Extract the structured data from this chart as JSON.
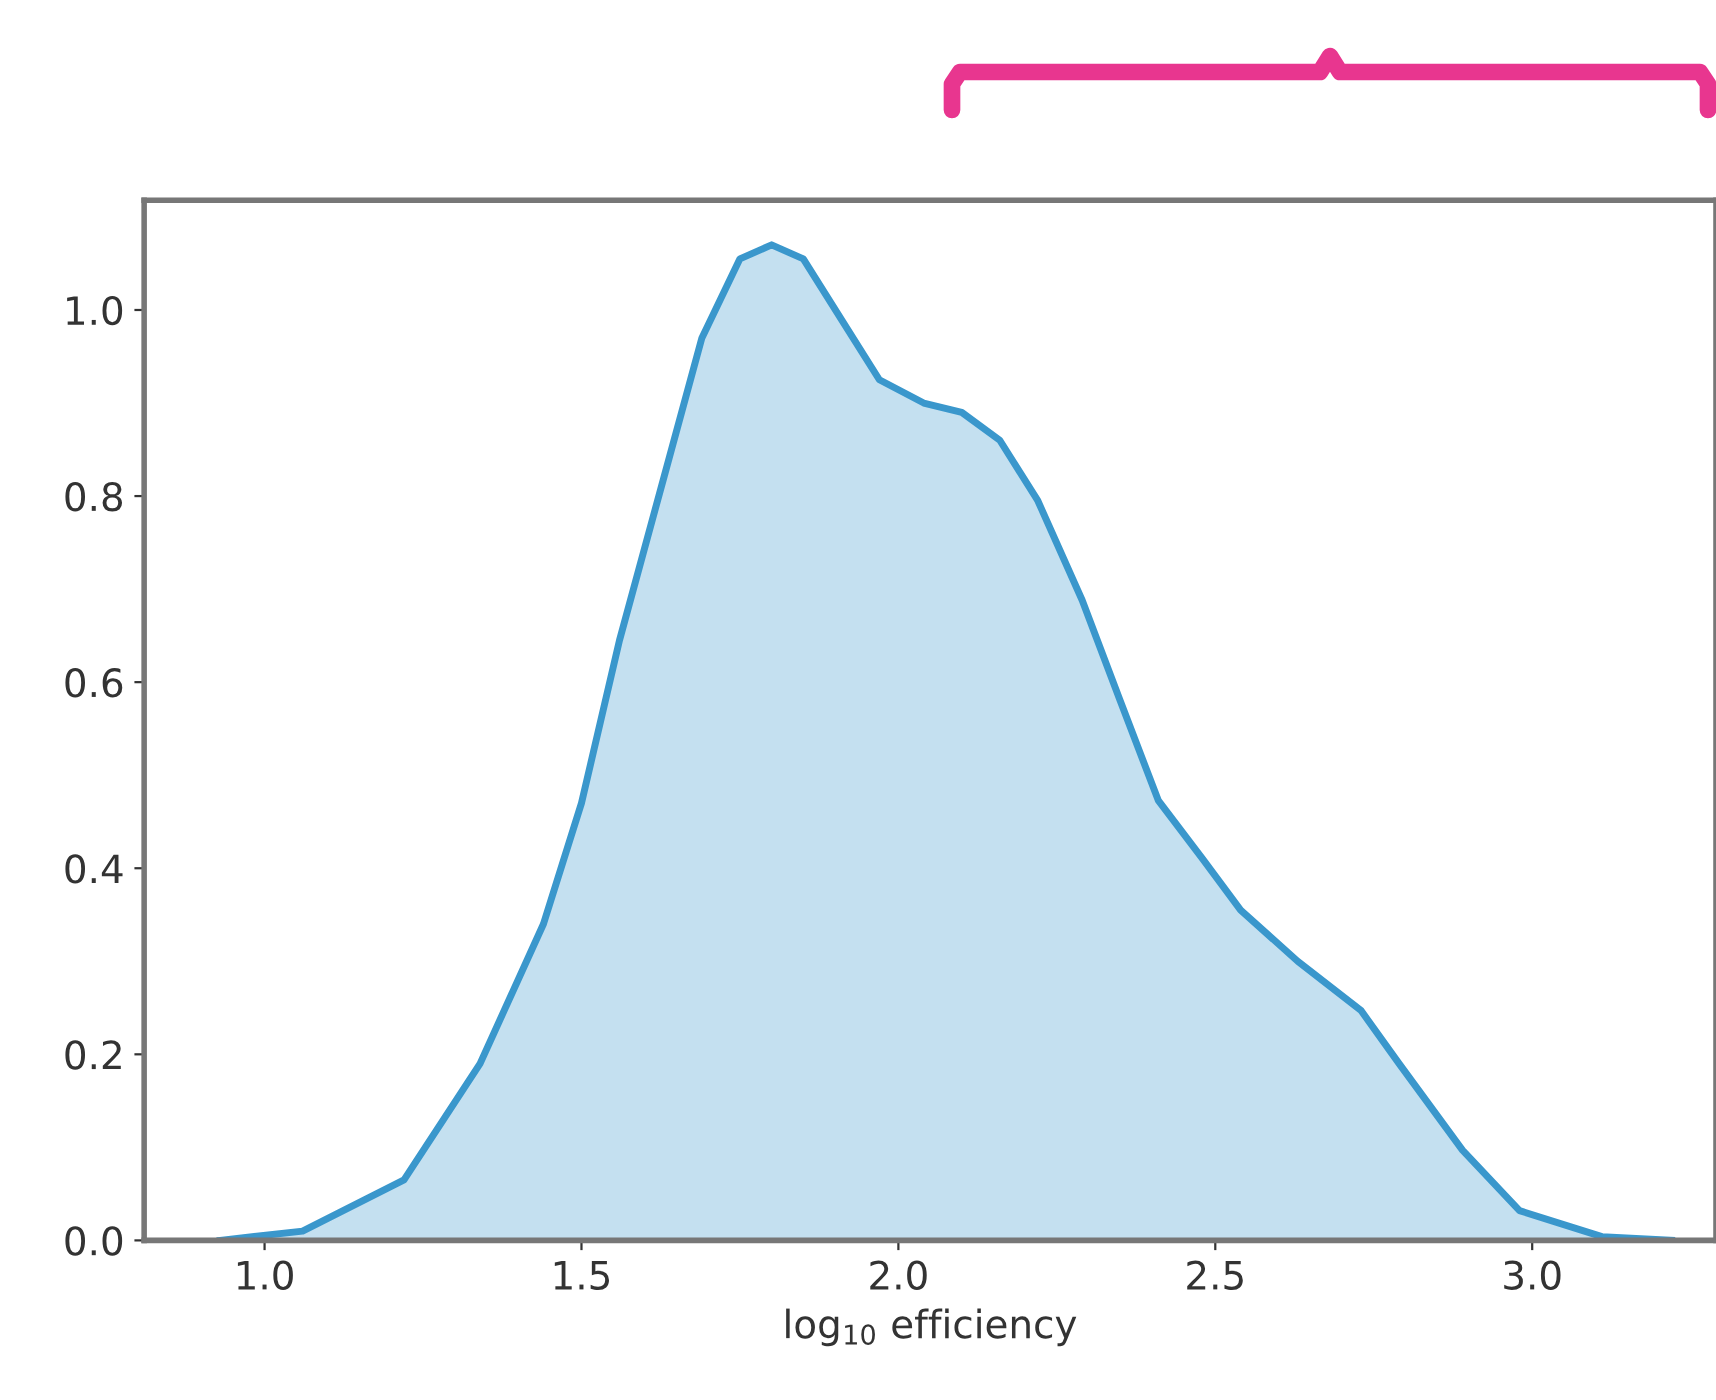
{
  "chart_data": {
    "type": "area",
    "xlabel": "log$_{10}$ efficiency",
    "xlim": [
      0.81,
      3.29
    ],
    "ylim": [
      0,
      1.118
    ],
    "xticks": [
      {
        "value": 1.0,
        "label": "1.0"
      },
      {
        "value": 1.5,
        "label": "1.5"
      },
      {
        "value": 2.0,
        "label": "2.0"
      },
      {
        "value": 2.5,
        "label": "2.5"
      },
      {
        "value": 3.0,
        "label": "3.0"
      }
    ],
    "yticks": [
      {
        "value": 0.0,
        "label": "0.0"
      },
      {
        "value": 0.2,
        "label": "0.2"
      },
      {
        "value": 0.4,
        "label": "0.4"
      },
      {
        "value": 0.6,
        "label": "0.6"
      },
      {
        "value": 0.8,
        "label": "0.8"
      },
      {
        "value": 1.0,
        "label": "1.0"
      }
    ],
    "grid": false,
    "legend": false,
    "series": [
      {
        "color": "#3a97cc",
        "x": [
          0.93,
          1.06,
          1.22,
          1.34,
          1.44,
          1.5,
          1.56,
          1.63,
          1.69,
          1.75,
          1.8,
          1.85,
          1.91,
          1.97,
          2.04,
          2.1,
          2.16,
          2.22,
          2.29,
          2.35,
          2.41,
          2.48,
          2.54,
          2.63,
          2.73,
          2.79,
          2.89,
          2.98,
          3.11,
          3.22
        ],
        "values": [
          0,
          0.01,
          0.065,
          0.19,
          0.34,
          0.47,
          0.645,
          0.82,
          0.97,
          1.055,
          1.07,
          1.055,
          0.99,
          0.925,
          0.9,
          0.89,
          0.86,
          0.795,
          0.688,
          0.58,
          0.473,
          0.41,
          0.355,
          0.3,
          0.247,
          0.19,
          0.097,
          0.032,
          0.004,
          0
        ]
      }
    ]
  }
}
